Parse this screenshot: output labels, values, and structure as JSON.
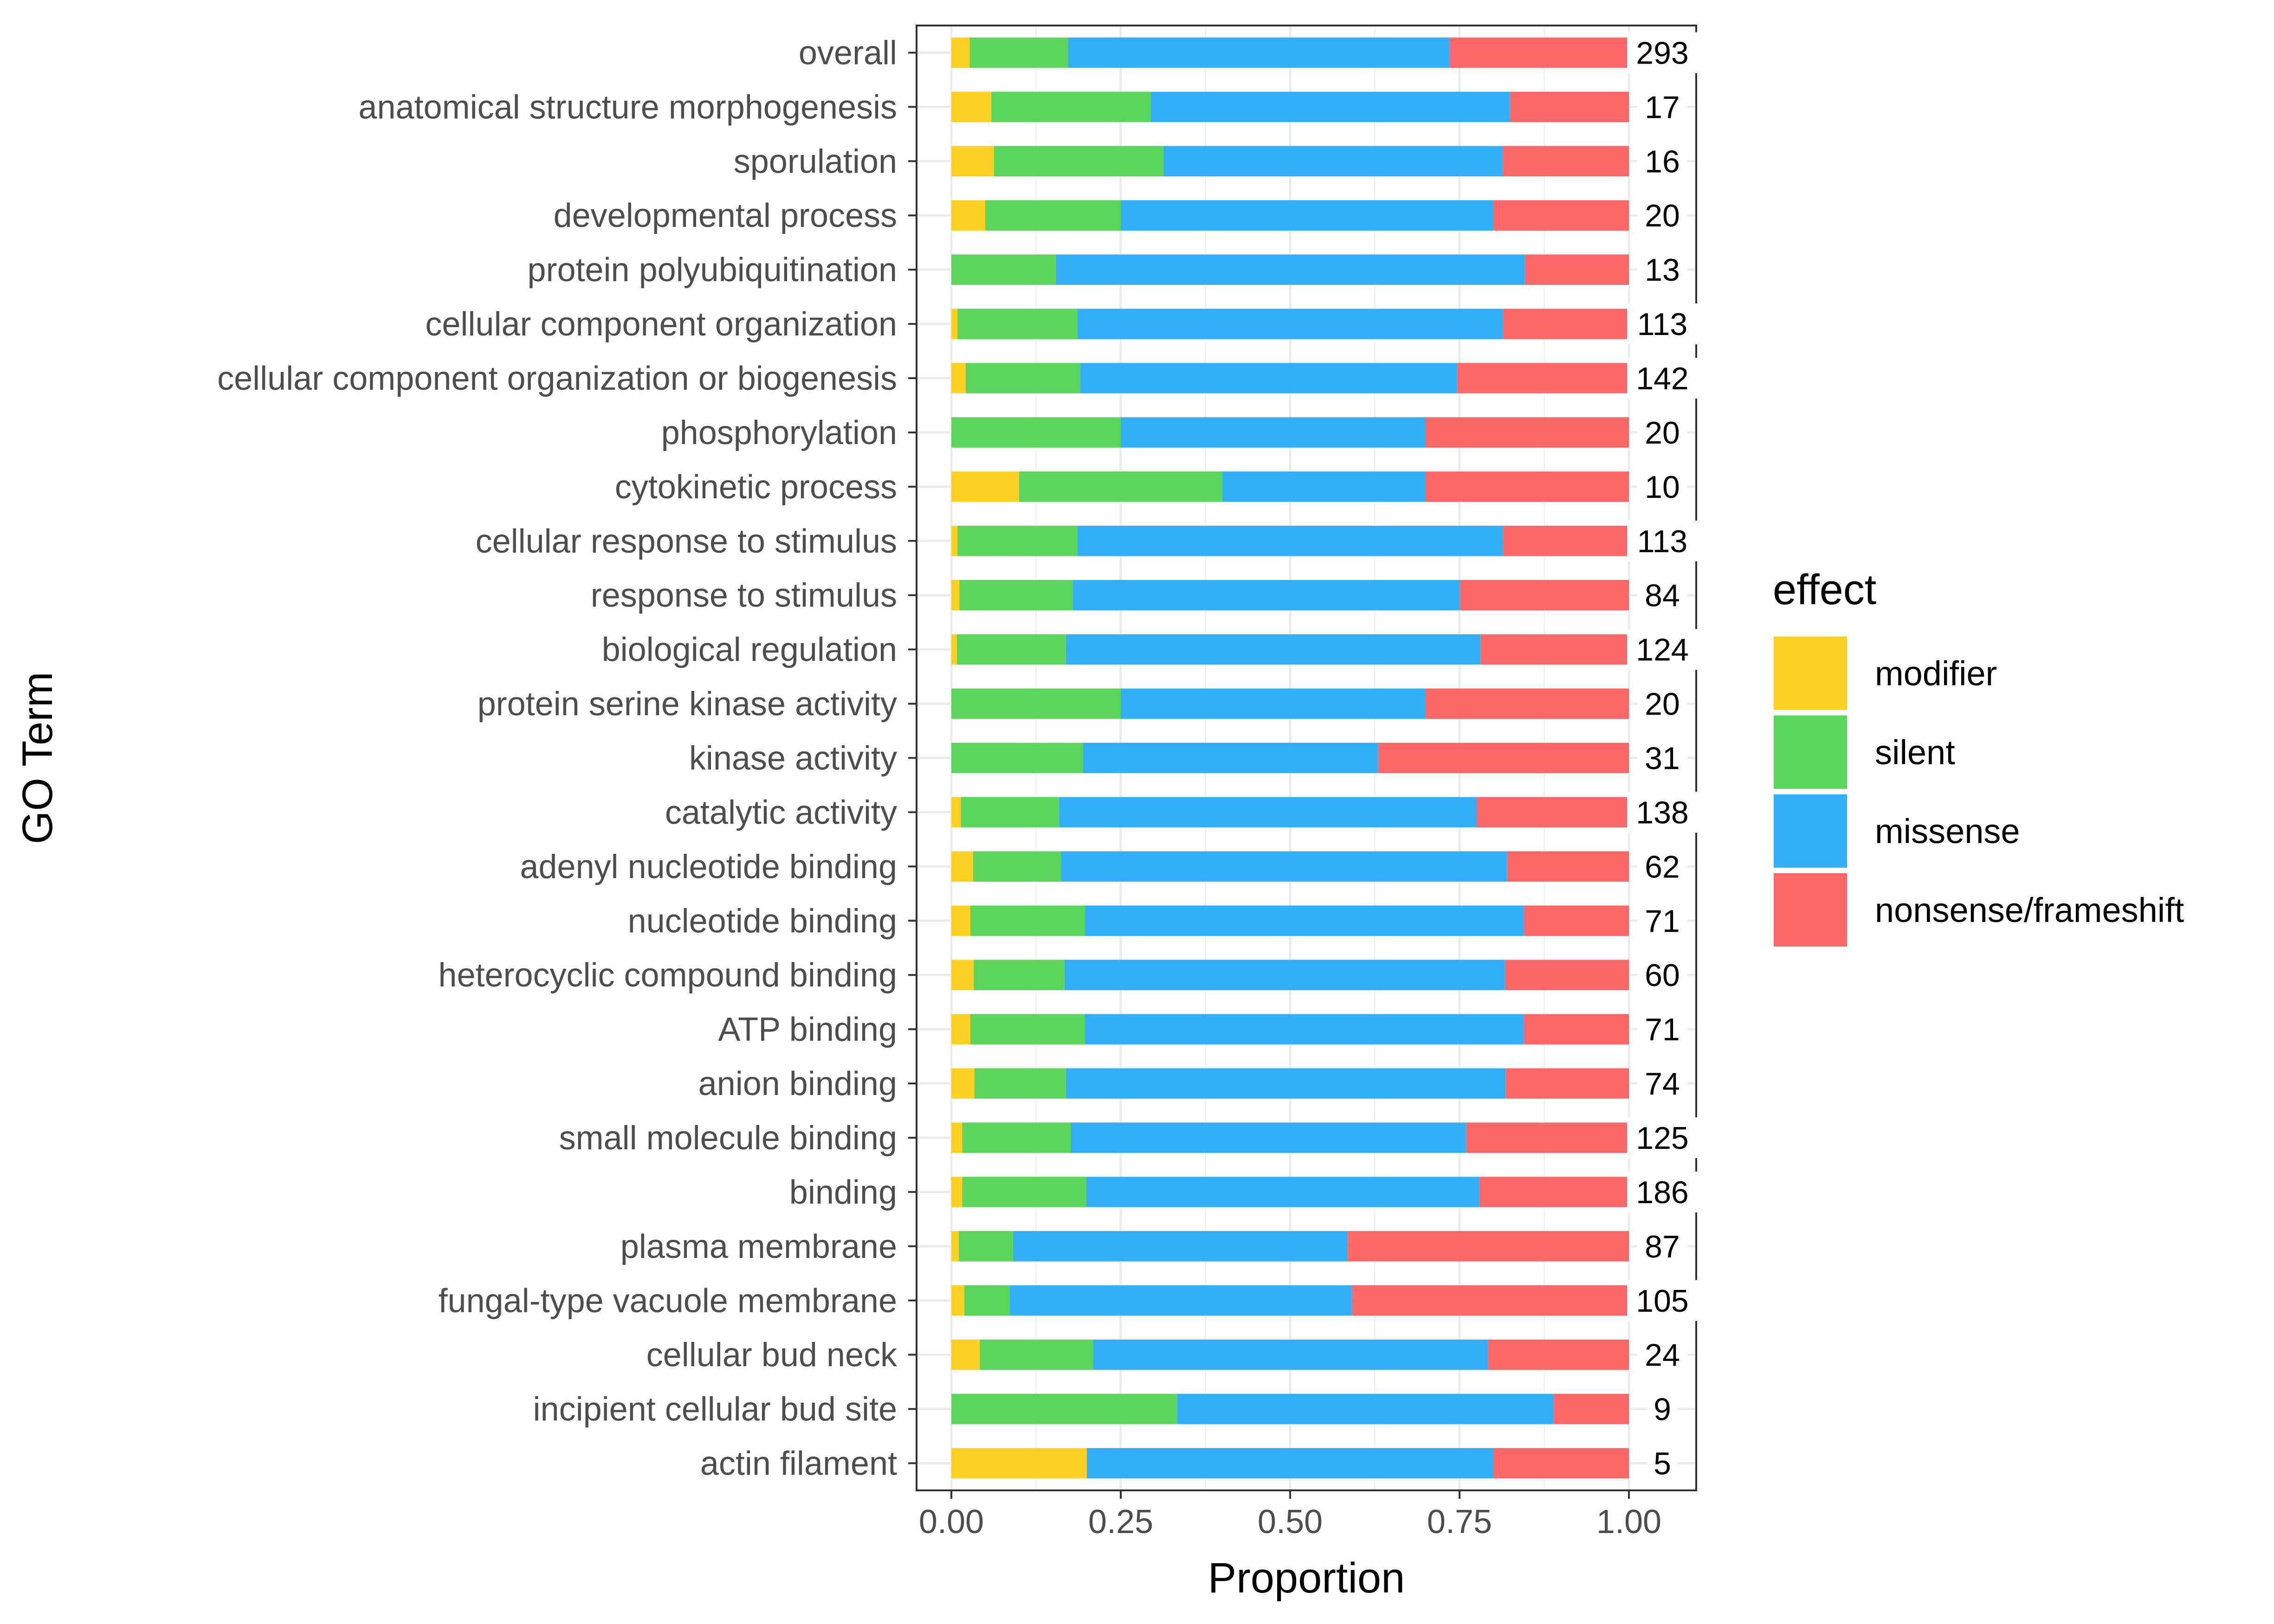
{
  "chart_data": {
    "type": "bar",
    "orientation": "horizontal",
    "stacked": true,
    "xlabel": "Proportion",
    "ylabel": "GO Term",
    "xlim": [
      0,
      1
    ],
    "xticks": [
      "0.00",
      "0.25",
      "0.50",
      "0.75",
      "1.00"
    ],
    "grid": true,
    "legend": {
      "title": "effect",
      "position": "right"
    },
    "categories": [
      "overall",
      "anatomical structure morphogenesis",
      "sporulation",
      "developmental process",
      "protein polyubiquitination",
      "cellular component organization",
      "cellular component organization or biogenesis",
      "phosphorylation",
      "cytokinetic process",
      "cellular response to stimulus",
      "response to stimulus",
      "biological regulation",
      "protein serine kinase activity",
      "kinase activity",
      "catalytic activity",
      "adenyl nucleotide binding",
      "nucleotide binding",
      "heterocyclic compound binding",
      "ATP binding",
      "anion binding",
      "small molecule binding",
      "binding",
      "plasma membrane",
      "fungal-type vacuole membrane",
      "cellular bud neck",
      "incipient cellular bud site",
      "actin filament"
    ],
    "counts": [
      "293",
      "17",
      "16",
      "20",
      "13",
      "113",
      "142",
      "20",
      "10",
      "113",
      "84",
      "124",
      "20",
      "31",
      "138",
      "62",
      "71",
      "60",
      "71",
      "74",
      "125",
      "186",
      "87",
      "105",
      "24",
      "9",
      "5"
    ],
    "series": [
      {
        "name": "modifier",
        "color": "#FDD023",
        "values": [
          0.027,
          0.059,
          0.063,
          0.05,
          0.0,
          0.009,
          0.021,
          0.0,
          0.1,
          0.009,
          0.012,
          0.008,
          0.0,
          0.0,
          0.014,
          0.032,
          0.028,
          0.033,
          0.028,
          0.034,
          0.016,
          0.016,
          0.011,
          0.019,
          0.042,
          0.0,
          0.2
        ]
      },
      {
        "name": "silent",
        "color": "#5DD55D",
        "values": [
          0.145,
          0.235,
          0.25,
          0.2,
          0.154,
          0.177,
          0.169,
          0.25,
          0.3,
          0.177,
          0.167,
          0.161,
          0.25,
          0.194,
          0.145,
          0.13,
          0.169,
          0.134,
          0.169,
          0.135,
          0.16,
          0.183,
          0.08,
          0.067,
          0.167,
          0.333,
          0.0
        ]
      },
      {
        "name": "missense",
        "color": "#35AEFA",
        "values": [
          0.563,
          0.53,
          0.5,
          0.55,
          0.692,
          0.628,
          0.556,
          0.45,
          0.3,
          0.628,
          0.571,
          0.612,
          0.45,
          0.436,
          0.616,
          0.658,
          0.648,
          0.65,
          0.648,
          0.649,
          0.584,
          0.58,
          0.494,
          0.505,
          0.583,
          0.556,
          0.6
        ]
      },
      {
        "name": "nonsense/frameshift",
        "color": "#FC6767",
        "values": [
          0.265,
          0.176,
          0.187,
          0.2,
          0.154,
          0.186,
          0.254,
          0.3,
          0.3,
          0.186,
          0.25,
          0.219,
          0.3,
          0.37,
          0.225,
          0.18,
          0.155,
          0.183,
          0.155,
          0.182,
          0.24,
          0.221,
          0.415,
          0.409,
          0.208,
          0.111,
          0.2
        ]
      }
    ]
  }
}
